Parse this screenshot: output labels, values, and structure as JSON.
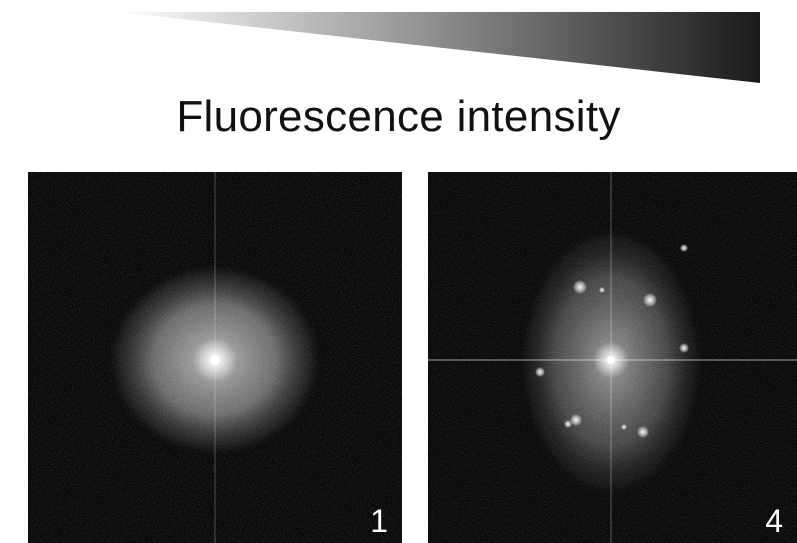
{
  "figure": {
    "title": "Fluorescence intensity",
    "wedge_colors": {
      "start": "#ffffff",
      "end": "#1a1a1a"
    },
    "panels": [
      {
        "number": "1",
        "pattern": "diffuse-halo"
      },
      {
        "number": "4",
        "pattern": "halo-with-bragg-spots"
      }
    ]
  }
}
